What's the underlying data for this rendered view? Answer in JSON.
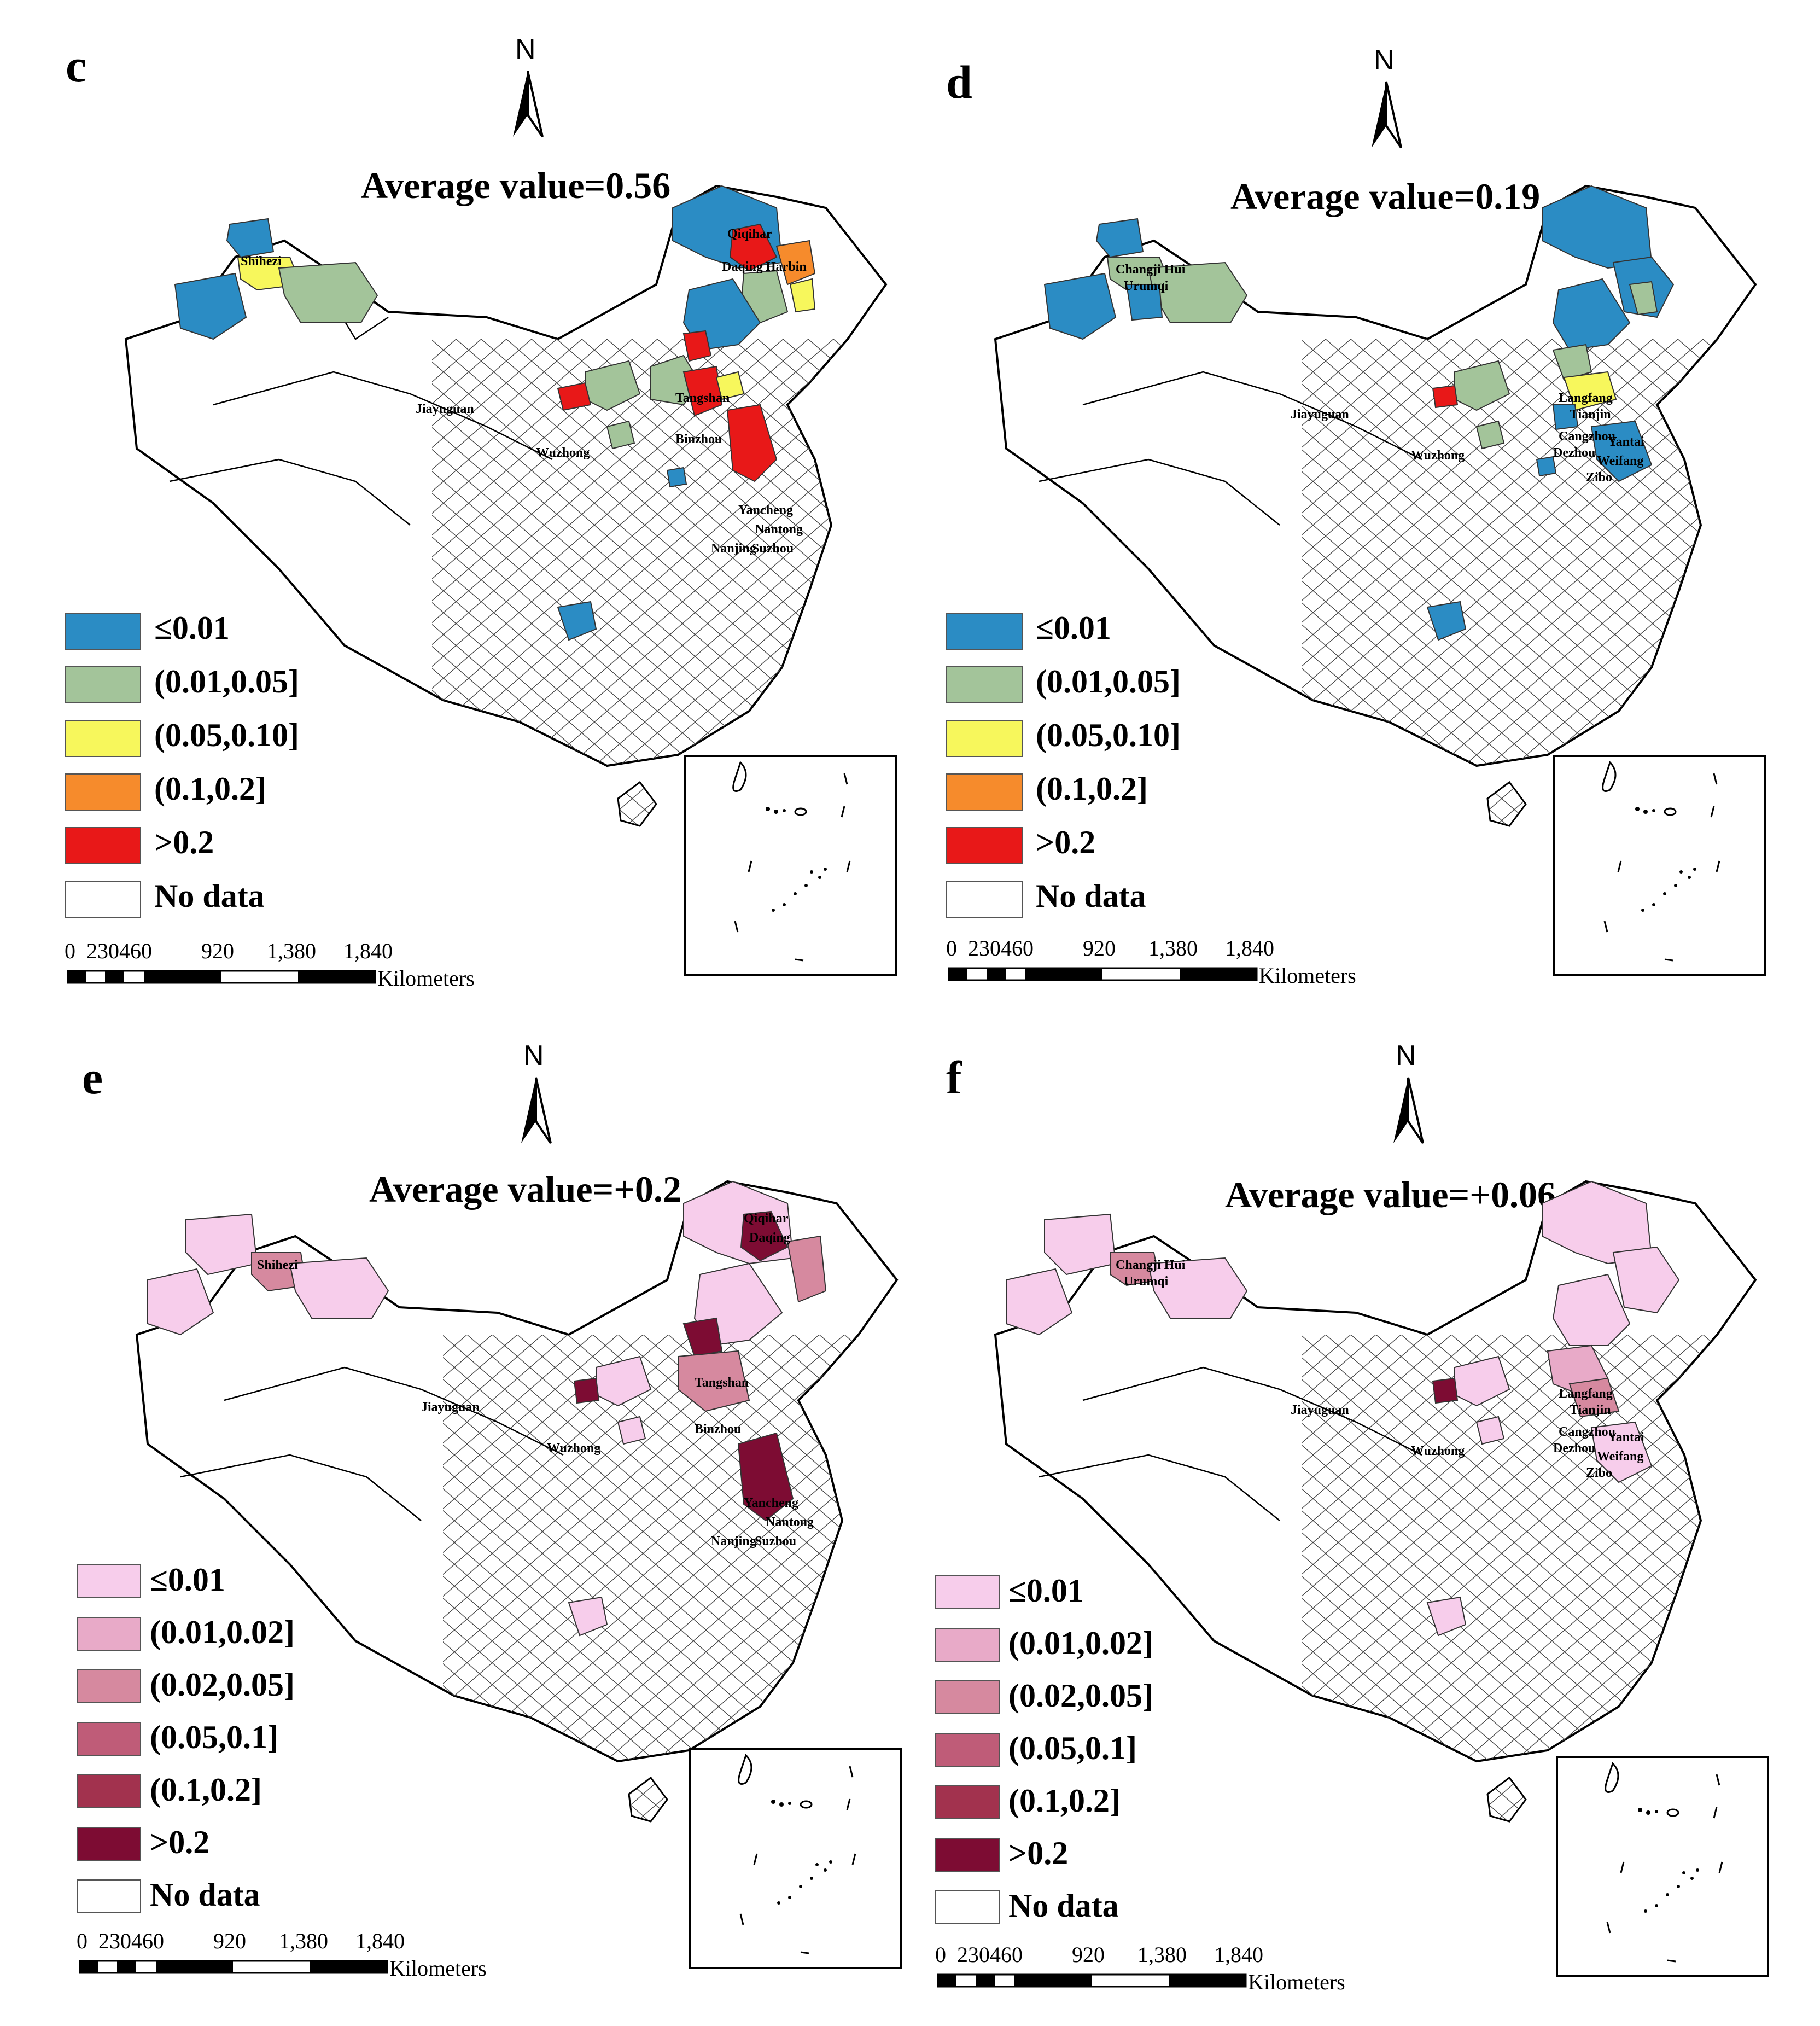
{
  "panels": [
    {
      "id": "c",
      "label": "c",
      "north": "N",
      "average_text": "Average value=0.56",
      "legend": [
        {
          "label": "≤0.01",
          "color": "#2b8cc4"
        },
        {
          "label": "(0.01,0.05]",
          "color": "#a3c49a"
        },
        {
          "label": "(0.05,0.10]",
          "color": "#f7f75c"
        },
        {
          "label": "(0.1,0.2]",
          "color": "#f68b2c"
        },
        {
          "label": ">0.2",
          "color": "#e81818"
        },
        {
          "label": "No data",
          "color": "#ffffff"
        }
      ],
      "scale_ticks": [
        "0",
        "230460",
        "920",
        "1,380",
        "1,840"
      ],
      "scale_unit": "Kilometers",
      "cities": [
        "Qiqihar",
        "Daqing",
        "Harbin",
        "Shihezi",
        "Jiayuguan",
        "Wuzhong",
        "Tangshan",
        "Binzhou",
        "Yancheng",
        "Nantong",
        "Nanjing",
        "Suzhou"
      ]
    },
    {
      "id": "d",
      "label": "d",
      "north": "N",
      "average_text": "Average value=0.19",
      "legend": [
        {
          "label": "≤0.01",
          "color": "#2b8cc4"
        },
        {
          "label": "(0.01,0.05]",
          "color": "#a3c49a"
        },
        {
          "label": "(0.05,0.10]",
          "color": "#f7f75c"
        },
        {
          "label": "(0.1,0.2]",
          "color": "#f68b2c"
        },
        {
          "label": ">0.2",
          "color": "#e81818"
        },
        {
          "label": "No data",
          "color": "#ffffff"
        }
      ],
      "scale_ticks": [
        "0",
        "230460",
        "920",
        "1,380",
        "1,840"
      ],
      "scale_unit": "Kilometers",
      "cities": [
        "Changji Hui",
        "Urumqi",
        "Jiayuguan",
        "Wuzhong",
        "Langfang",
        "Tianjin",
        "Cangzhou",
        "Dezhou",
        "Yantai",
        "Weifang",
        "Zibo"
      ]
    },
    {
      "id": "e",
      "label": "e",
      "north": "N",
      "average_text": "Average value=+0.2",
      "legend": [
        {
          "label": "≤0.01",
          "color": "#f7cdeb"
        },
        {
          "label": "(0.01,0.02]",
          "color": "#e8aac8"
        },
        {
          "label": "(0.02,0.05]",
          "color": "#d6899f"
        },
        {
          "label": "(0.05,0.1]",
          "color": "#bf5c78"
        },
        {
          "label": "(0.1,0.2]",
          "color": "#a2324e"
        },
        {
          "label": ">0.2",
          "color": "#7d0c33"
        },
        {
          "label": "No data",
          "color": "#ffffff"
        }
      ],
      "scale_ticks": [
        "0",
        "230460",
        "920",
        "1,380",
        "1,840"
      ],
      "scale_unit": "Kilometers",
      "cities": [
        "Qiqihar",
        "Daqing",
        "Shihezi",
        "Jiayuguan",
        "Wuzhong",
        "Tangshan",
        "Binzhou",
        "Yancheng",
        "Nantong",
        "Nanjing",
        "Suzhou"
      ]
    },
    {
      "id": "f",
      "label": "f",
      "north": "N",
      "average_text": "Average value=+0.06",
      "legend": [
        {
          "label": "≤0.01",
          "color": "#f7cdeb"
        },
        {
          "label": "(0.01,0.02]",
          "color": "#e8aac8"
        },
        {
          "label": "(0.02,0.05]",
          "color": "#d6899f"
        },
        {
          "label": "(0.05,0.1]",
          "color": "#bf5c78"
        },
        {
          "label": "(0.1,0.2]",
          "color": "#a2324e"
        },
        {
          "label": ">0.2",
          "color": "#7d0c33"
        },
        {
          "label": "No data",
          "color": "#ffffff"
        }
      ],
      "scale_ticks": [
        "0",
        "230460",
        "920",
        "1,380",
        "1,840"
      ],
      "scale_unit": "Kilometers",
      "cities": [
        "Changji Hui",
        "Urumqi",
        "Jiayuguan",
        "Wuzhong",
        "Langfang",
        "Tianjin",
        "Cangzhou",
        "Dezhou",
        "Yantai",
        "Weifang",
        "Zibo"
      ]
    }
  ]
}
